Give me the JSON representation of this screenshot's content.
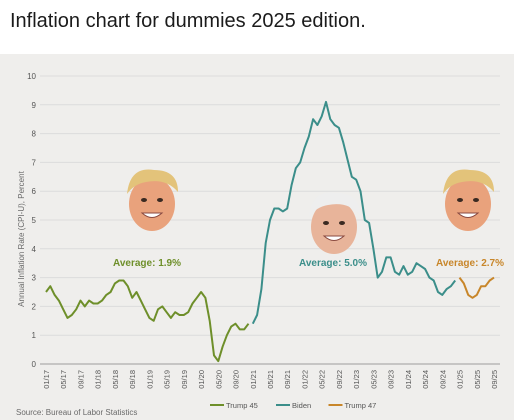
{
  "post": {
    "title": "Inflation chart for dummies 2025 edition."
  },
  "chart_data": {
    "type": "line",
    "ylabel": "Annual Inflation Rate (CPI-U), Percent",
    "ylim": [
      0,
      10
    ],
    "yticks": [
      0,
      1,
      2,
      3,
      4,
      5,
      6,
      7,
      8,
      9,
      10
    ],
    "x_start": "2017-01",
    "x_tick_labels": [
      "01/17",
      "05/17",
      "09/17",
      "01/18",
      "05/18",
      "09/18",
      "01/19",
      "05/19",
      "09/19",
      "01/20",
      "05/20",
      "09/20",
      "01/21",
      "05/21",
      "09/21",
      "01/22",
      "05/22",
      "09/22",
      "01/23",
      "05/23",
      "09/23",
      "01/24",
      "05/24",
      "09/24",
      "01/25",
      "05/25",
      "09/25"
    ],
    "grid": "horizontal",
    "source": "Source: Bureau of Labor Statistics",
    "series": [
      {
        "name": "Trump 45",
        "color": "#6e8f2a",
        "average_label": "Average: 1.9%",
        "start": "2017-01",
        "values": [
          2.5,
          2.7,
          2.4,
          2.2,
          1.9,
          1.6,
          1.7,
          1.9,
          2.2,
          2.0,
          2.2,
          2.1,
          2.1,
          2.2,
          2.4,
          2.5,
          2.8,
          2.9,
          2.9,
          2.7,
          2.3,
          2.5,
          2.2,
          1.9,
          1.6,
          1.5,
          1.9,
          2.0,
          1.8,
          1.6,
          1.8,
          1.7,
          1.7,
          1.8,
          2.1,
          2.3,
          2.5,
          2.3,
          1.5,
          0.3,
          0.1,
          0.6,
          1.0,
          1.3,
          1.4,
          1.2,
          1.2,
          1.4
        ]
      },
      {
        "name": "Biden",
        "color": "#3b8e8a",
        "average_label": "Average: 5.0%",
        "start": "2021-01",
        "values": [
          1.4,
          1.7,
          2.6,
          4.2,
          5.0,
          5.4,
          5.4,
          5.3,
          5.4,
          6.2,
          6.8,
          7.0,
          7.5,
          7.9,
          8.5,
          8.3,
          8.6,
          9.1,
          8.5,
          8.3,
          8.2,
          7.7,
          7.1,
          6.5,
          6.4,
          6.0,
          5.0,
          4.9,
          4.0,
          3.0,
          3.2,
          3.7,
          3.7,
          3.2,
          3.1,
          3.4,
          3.1,
          3.2,
          3.5,
          3.4,
          3.3,
          3.0,
          2.9,
          2.5,
          2.4,
          2.6,
          2.7,
          2.9
        ]
      },
      {
        "name": "Trump 47",
        "color": "#c8862a",
        "average_label": "Average: 2.7%",
        "start": "2025-01",
        "values": [
          3.0,
          2.8,
          2.4,
          2.3,
          2.4,
          2.7,
          2.7,
          2.9,
          3.0
        ]
      }
    ]
  }
}
